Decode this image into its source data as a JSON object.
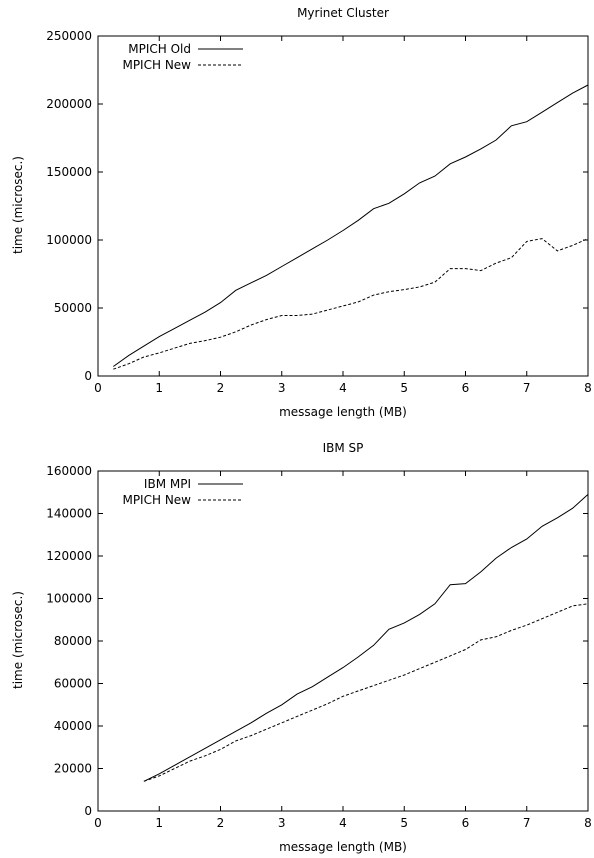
{
  "chart_data": [
    {
      "type": "line",
      "title": "Myrinet Cluster",
      "xlabel": "message length (MB)",
      "ylabel": "time (microsec.)",
      "xlim": [
        0,
        8
      ],
      "ylim": [
        0,
        250000
      ],
      "xticks": [
        0,
        1,
        2,
        3,
        4,
        5,
        6,
        7,
        8
      ],
      "yticks": [
        0,
        50000,
        100000,
        150000,
        200000,
        250000
      ],
      "legend_position": "top-left",
      "grid": false,
      "series": [
        {
          "name": "MPICH Old",
          "style": "solid",
          "x": [
            0.25,
            0.5,
            0.75,
            1,
            1.25,
            1.5,
            1.75,
            2,
            2.25,
            2.5,
            2.75,
            3,
            3.25,
            3.5,
            3.75,
            4,
            4.25,
            4.5,
            4.75,
            5,
            5.25,
            5.5,
            5.75,
            6,
            6.25,
            6.5,
            6.75,
            7,
            7.25,
            7.5,
            7.75,
            8
          ],
          "y": [
            7000,
            15000,
            22000,
            29000,
            35000,
            41000,
            47000,
            54000,
            63000,
            68500,
            74000,
            80500,
            87000,
            93500,
            100000,
            107000,
            114500,
            123000,
            127000,
            134000,
            142000,
            147000,
            156000,
            161000,
            167000,
            173500,
            184000,
            187000,
            194000,
            201000,
            208000,
            214000
          ]
        },
        {
          "name": "MPICH New",
          "style": "dashed",
          "x": [
            0.25,
            0.5,
            0.75,
            1,
            1.25,
            1.5,
            1.75,
            2,
            2.25,
            2.5,
            2.75,
            3,
            3.25,
            3.5,
            3.75,
            4,
            4.25,
            4.5,
            4.75,
            5,
            5.25,
            5.5,
            5.75,
            6,
            6.25,
            6.5,
            6.75,
            7,
            7.25,
            7.5,
            7.75,
            8
          ],
          "y": [
            5000,
            9000,
            14000,
            17000,
            20500,
            24000,
            26000,
            28500,
            32500,
            37500,
            41500,
            44500,
            44500,
            45500,
            48500,
            51500,
            54500,
            59500,
            62000,
            63500,
            65500,
            69000,
            79000,
            79000,
            77500,
            83000,
            87000,
            99000,
            101000,
            92000,
            96000,
            101000
          ]
        }
      ]
    },
    {
      "type": "line",
      "title": "IBM SP",
      "xlabel": "message length (MB)",
      "ylabel": "time (microsec.)",
      "xlim": [
        0,
        8
      ],
      "ylim": [
        0,
        160000
      ],
      "xticks": [
        0,
        1,
        2,
        3,
        4,
        5,
        6,
        7,
        8
      ],
      "yticks": [
        0,
        20000,
        40000,
        60000,
        80000,
        100000,
        120000,
        140000,
        160000
      ],
      "legend_position": "top-left",
      "grid": false,
      "series": [
        {
          "name": "IBM MPI",
          "style": "solid",
          "x": [
            0.75,
            1,
            1.25,
            1.5,
            1.75,
            2,
            2.25,
            2.5,
            2.75,
            3,
            3.25,
            3.5,
            3.75,
            4,
            4.25,
            4.5,
            4.75,
            5,
            5.25,
            5.5,
            5.75,
            6,
            6.25,
            6.5,
            6.75,
            7,
            7.25,
            7.5,
            7.75,
            8
          ],
          "y": [
            14000,
            17500,
            21500,
            25500,
            29500,
            33500,
            37500,
            41500,
            46000,
            50000,
            55000,
            58500,
            63000,
            67500,
            72500,
            78000,
            85500,
            88500,
            92500,
            97500,
            106500,
            107000,
            112500,
            119000,
            124000,
            128000,
            134000,
            138000,
            142500,
            149000
          ]
        },
        {
          "name": "MPICH New",
          "style": "dashed",
          "x": [
            0.75,
            1,
            1.25,
            1.5,
            1.75,
            2,
            2.25,
            2.5,
            2.75,
            3,
            3.25,
            3.5,
            3.75,
            4,
            4.25,
            4.5,
            4.75,
            5,
            5.25,
            5.5,
            5.75,
            6,
            6.25,
            6.5,
            6.75,
            7,
            7.25,
            7.5,
            7.75,
            8
          ],
          "y": [
            14000,
            16500,
            20000,
            23500,
            26000,
            29000,
            33000,
            35500,
            38500,
            41500,
            44500,
            47500,
            50500,
            54000,
            56500,
            59000,
            61500,
            64000,
            67000,
            70000,
            73000,
            76000,
            80500,
            82000,
            85000,
            87500,
            90500,
            93500,
            96500,
            97500
          ]
        }
      ]
    }
  ]
}
